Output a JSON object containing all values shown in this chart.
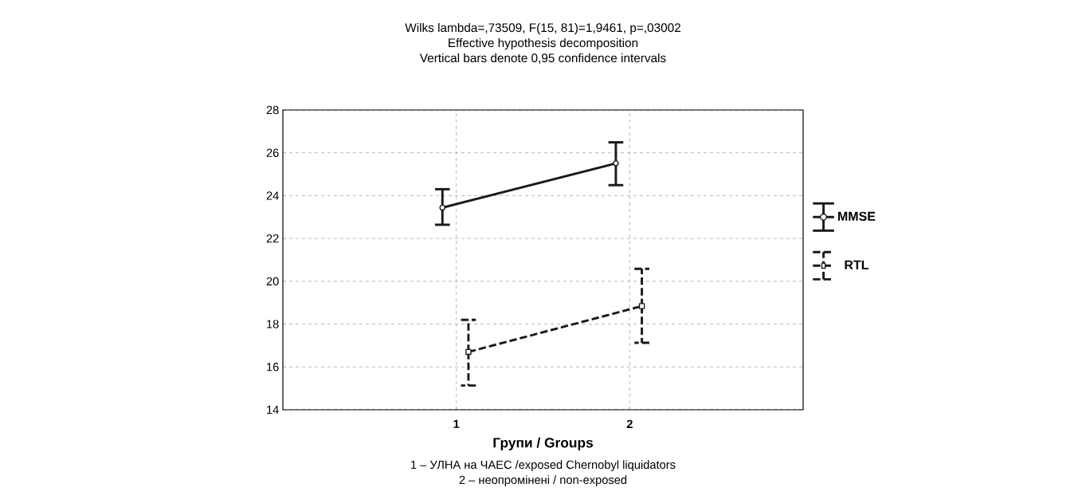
{
  "chart_data": {
    "type": "line",
    "title": "Wilks lambda=,73509, F(15, 81)=1,9461, p=,03002",
    "subtitle": "Effective hypothesis decomposition",
    "xlabel": "Групи / Groups",
    "annotations": [
      "Vertical bars denote 0,95 confidence intervals",
      "1 – УЛНА на ЧАЕС /exposed Chernobyl liquidators",
      "2 – неопромінені / non-exposed"
    ],
    "xlim": [
      0,
      3
    ],
    "xticks": [
      1,
      2
    ],
    "ylim": [
      14,
      28
    ],
    "yticks": [
      14,
      16,
      18,
      20,
      22,
      24,
      26,
      28
    ],
    "grid": true,
    "legend": "right",
    "series": [
      {
        "name": "MMSE",
        "color": "#1a1a1a",
        "x": [
          0.92,
          1.92
        ],
        "values": [
          23.44,
          25.51
        ],
        "errors": [
          [
            22.64,
            24.3
          ],
          [
            24.49,
            26.49
          ]
        ],
        "marker": "circle",
        "line_style": "solid"
      },
      {
        "name": "RTL",
        "color": "#1a1a1a",
        "x": [
          1.07,
          2.07
        ],
        "values": [
          16.7,
          18.84
        ],
        "errors": [
          [
            15.13,
            18.2
          ],
          [
            17.13,
            20.58
          ]
        ],
        "marker": "square",
        "line_style": "dashed"
      }
    ]
  }
}
